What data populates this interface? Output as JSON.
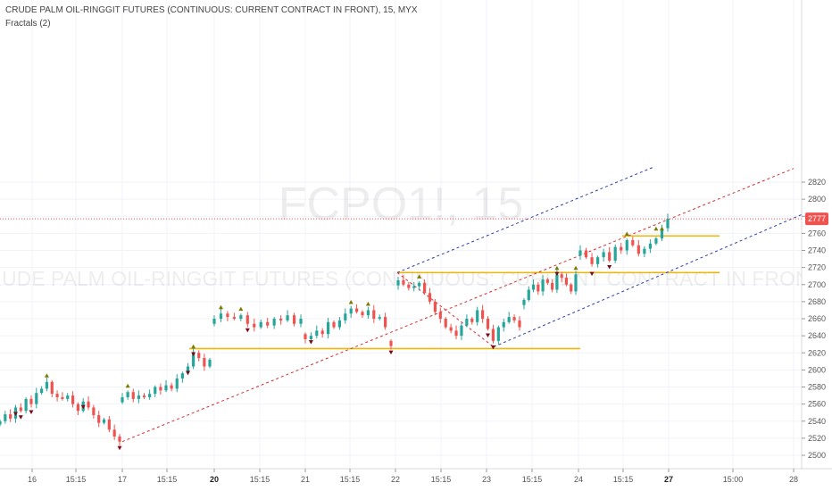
{
  "header": {
    "title": "CRUDE PALM OIL-RINGGIT FUTURES (CONTINUOUS: CURRENT CONTRACT IN FRONT), 15, MYX",
    "indicator": "Fractals (2)"
  },
  "watermark": {
    "symbol": "FCPO1!, 15",
    "description": "CRUDE PALM OIL-RINGGIT FUTURES (CONTINUOUS: CURRENT CONTRACT IN FRONT)"
  },
  "last_price": {
    "label": "2777",
    "value": 2777
  },
  "colors": {
    "up": "#26a69a",
    "down": "#ef5350",
    "fractal_up": "#7a7a00",
    "fractal_down": "#7a0a14",
    "level": "#f2b705",
    "channel_blue": "#2d3ea8",
    "channel_red": "#d32f2f",
    "price_line": "#ef5350"
  },
  "chart_data": {
    "type": "candlestick",
    "symbol": "FCPO1!",
    "interval": "15",
    "exchange": "MYX",
    "y_axis": {
      "side": "right",
      "ylim": [
        2492,
        2830
      ],
      "ticks": [
        2500,
        2520,
        2540,
        2560,
        2580,
        2600,
        2620,
        2640,
        2660,
        2680,
        2700,
        2720,
        2740,
        2760,
        2780,
        2800,
        2820
      ]
    },
    "x_axis": {
      "ticks": [
        {
          "label": "16",
          "bold": false
        },
        {
          "label": "15:15",
          "bold": false
        },
        {
          "label": "17",
          "bold": false
        },
        {
          "label": "15:15",
          "bold": false
        },
        {
          "label": "20",
          "bold": true
        },
        {
          "label": "15:15",
          "bold": false
        },
        {
          "label": "21",
          "bold": false
        },
        {
          "label": "15:15",
          "bold": false
        },
        {
          "label": "22",
          "bold": false
        },
        {
          "label": "15:15",
          "bold": false
        },
        {
          "label": "23",
          "bold": false
        },
        {
          "label": "15:15",
          "bold": false
        },
        {
          "label": "24",
          "bold": false
        },
        {
          "label": "15:15",
          "bold": false
        },
        {
          "label": "27",
          "bold": true
        },
        {
          "label": "15:00",
          "bold": false
        },
        {
          "label": "28",
          "bold": false
        }
      ]
    },
    "candle_closes": [
      2540,
      2548,
      2543,
      2556,
      2552,
      2566,
      2560,
      2573,
      2578,
      2586,
      2572,
      2568,
      2566,
      2570,
      2560,
      2552,
      2563,
      2556,
      2547,
      2538,
      2542,
      2530,
      2522,
      2516,
      2568,
      2574,
      2566,
      2570,
      2568,
      2572,
      2580,
      2576,
      2582,
      2578,
      2590,
      2596,
      2604,
      2620,
      2614,
      2604,
      2612,
      2660,
      2666,
      2662,
      2660,
      2664,
      2654,
      2650,
      2656,
      2652,
      2660,
      2658,
      2664,
      2654,
      2660,
      2636,
      2640,
      2646,
      2642,
      2656,
      2650,
      2658,
      2666,
      2672,
      2668,
      2664,
      2670,
      2660,
      2662,
      2650,
      2628,
      2705,
      2700,
      2696,
      2698,
      2702,
      2690,
      2680,
      2668,
      2660,
      2650,
      2646,
      2640,
      2652,
      2660,
      2656,
      2670,
      2660,
      2648,
      2634,
      2650,
      2656,
      2662,
      2658,
      2650,
      2682,
      2694,
      2700,
      2692,
      2706,
      2702,
      2694,
      2712,
      2708,
      2700,
      2692,
      2712,
      2740,
      2732,
      2724,
      2732,
      2738,
      2728,
      2744,
      2740,
      2752,
      2746,
      2736,
      2742,
      2748,
      2754,
      2766,
      2777
    ],
    "fractals_up": [
      2586,
      2574,
      2620,
      2666,
      2664,
      2672,
      2712,
      2702,
      2670,
      2712,
      2752,
      2758,
      2758
    ],
    "fractals_down": [
      2552,
      2516,
      2564,
      2556,
      2558,
      2604,
      2654,
      2648,
      2628,
      2626,
      2634,
      2640,
      2728,
      2720,
      2720
    ],
    "horizontal_levels": [
      2625,
      2714,
      2757
    ],
    "drawn_lines": [
      {
        "name": "channel-upper",
        "style": "dashed",
        "color": "blue",
        "from": {
          "t": "22",
          "price": 2714
        },
        "to": {
          "t": "27",
          "price": 2838
        }
      },
      {
        "name": "channel-middle",
        "style": "dashed",
        "color": "red",
        "from": {
          "t": "17",
          "price": 2516
        },
        "to": {
          "t": "28",
          "price": 2836
        }
      },
      {
        "name": "channel-lower",
        "style": "dashed",
        "color": "blue",
        "from": {
          "t": "23",
          "price": 2627
        },
        "to": {
          "t": "28",
          "price": 2782
        }
      },
      {
        "name": "decline-line",
        "style": "dashed",
        "color": "red",
        "from": {
          "t": "22",
          "price": 2714
        },
        "to": {
          "t": "23",
          "price": 2627
        }
      }
    ],
    "title": "CRUDE PALM OIL-RINGGIT FUTURES (CONTINUOUS: CURRENT CONTRACT IN FRONT), 15, MYX",
    "legend": []
  }
}
